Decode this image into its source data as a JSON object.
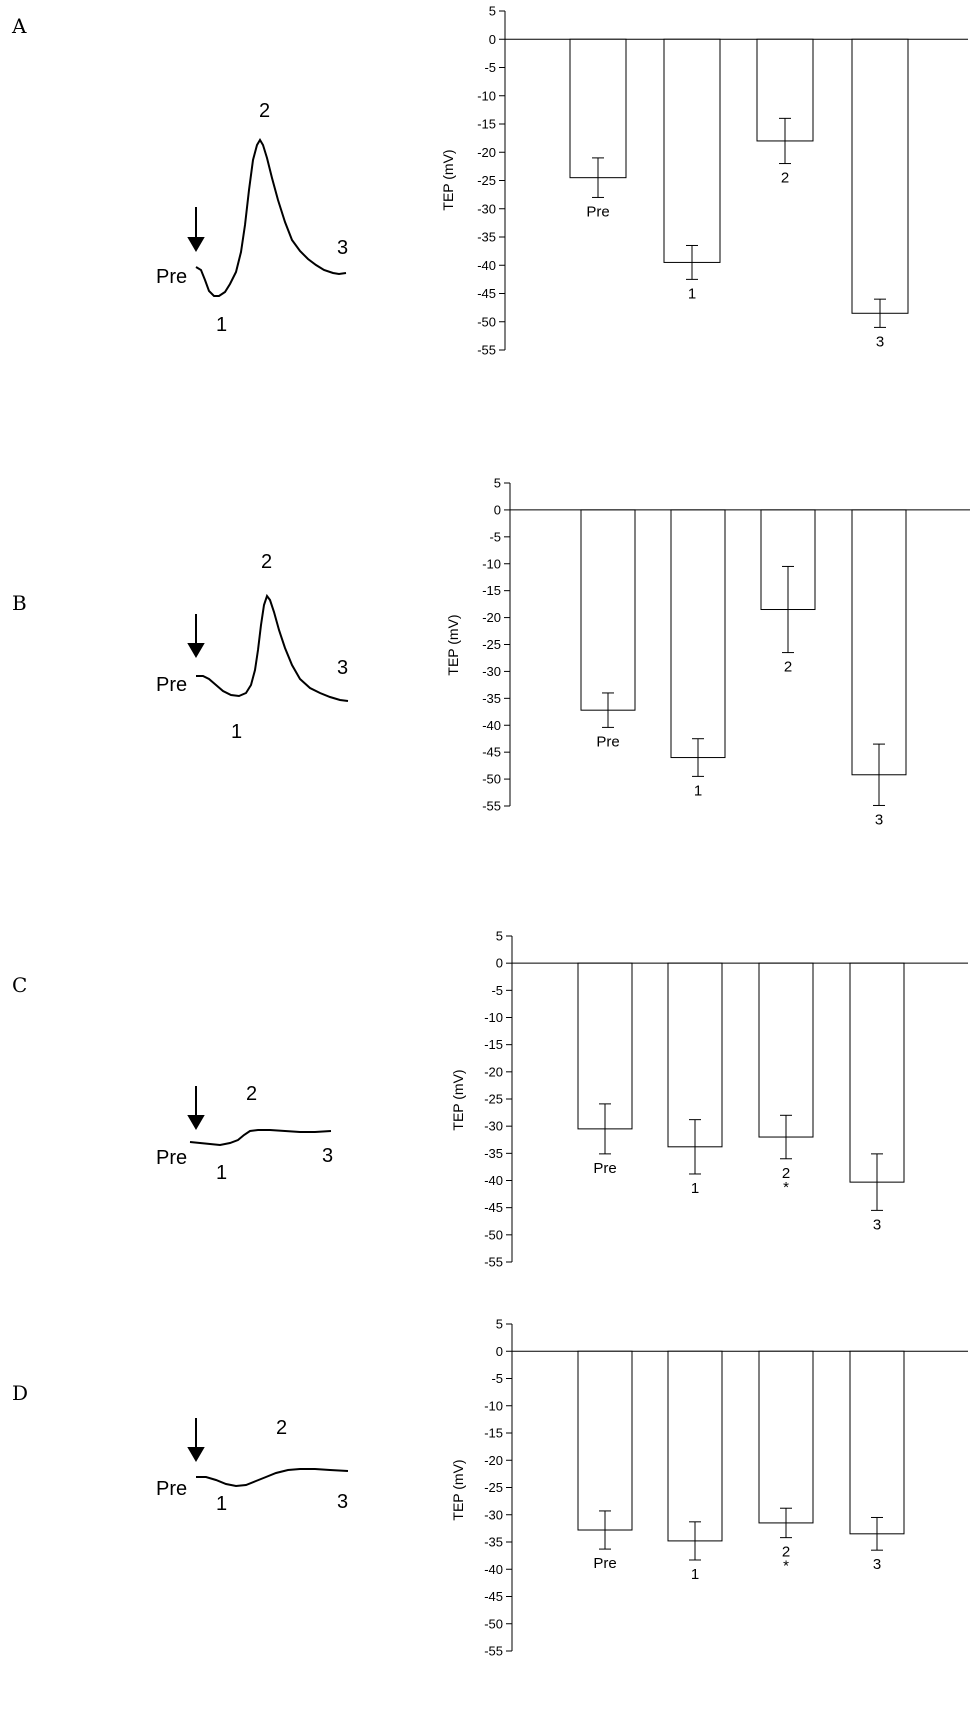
{
  "chart_data": [
    {
      "panel": "A",
      "type": "bar",
      "ylabel": "TEP (mV)",
      "ylim": [
        -55,
        5
      ],
      "yticks": [
        5,
        0,
        -5,
        -10,
        -15,
        -20,
        -25,
        -30,
        -35,
        -40,
        -45,
        -50,
        -55
      ],
      "categories": [
        "Pre",
        "1",
        "2",
        "3"
      ],
      "values": [
        -24.5,
        -39.5,
        -18,
        -48.5
      ],
      "errors": [
        3.5,
        3,
        4,
        2.5
      ],
      "significance": [
        "",
        "",
        "",
        ""
      ],
      "trace_labels": {
        "pre": "Pre",
        "p1": "1",
        "p2": "2",
        "p3": "3"
      }
    },
    {
      "panel": "B",
      "type": "bar",
      "ylabel": "TEP (mV)",
      "ylim": [
        -55,
        5
      ],
      "yticks": [
        5,
        0,
        -5,
        -10,
        -15,
        -20,
        -25,
        -30,
        -35,
        -40,
        -45,
        -50,
        -55
      ],
      "categories": [
        "Pre",
        "1",
        "2",
        "3"
      ],
      "values": [
        -37.2,
        -46,
        -18.5,
        -49.2
      ],
      "errors": [
        3.2,
        3.5,
        8,
        5.7
      ],
      "significance": [
        "",
        "",
        "",
        ""
      ],
      "trace_labels": {
        "pre": "Pre",
        "p1": "1",
        "p2": "2",
        "p3": "3"
      }
    },
    {
      "panel": "C",
      "type": "bar",
      "ylabel": "TEP (mV)",
      "ylim": [
        -55,
        5
      ],
      "yticks": [
        5,
        0,
        -5,
        -10,
        -15,
        -20,
        -25,
        -30,
        -35,
        -40,
        -45,
        -50,
        -55
      ],
      "categories": [
        "Pre",
        "1",
        "2",
        "3"
      ],
      "values": [
        -30.5,
        -33.8,
        -32,
        -40.3
      ],
      "errors": [
        4.6,
        5,
        4,
        5.2
      ],
      "significance": [
        "",
        "",
        "*",
        ""
      ],
      "trace_labels": {
        "pre": "Pre",
        "p1": "1",
        "p2": "2",
        "p3": "3"
      }
    },
    {
      "panel": "D",
      "type": "bar",
      "ylabel": "TEP (mV)",
      "ylim": [
        -55,
        5
      ],
      "yticks": [
        5,
        0,
        -5,
        -10,
        -15,
        -20,
        -25,
        -30,
        -35,
        -40,
        -45,
        -50,
        -55
      ],
      "categories": [
        "Pre",
        "1",
        "2",
        "3"
      ],
      "values": [
        -32.8,
        -34.8,
        -31.5,
        -33.5
      ],
      "errors": [
        3.5,
        3.5,
        2.7,
        3
      ],
      "significance": [
        "",
        "",
        "*",
        ""
      ],
      "trace_labels": {
        "pre": "Pre",
        "p1": "1",
        "p2": "2",
        "p3": "3"
      }
    }
  ]
}
